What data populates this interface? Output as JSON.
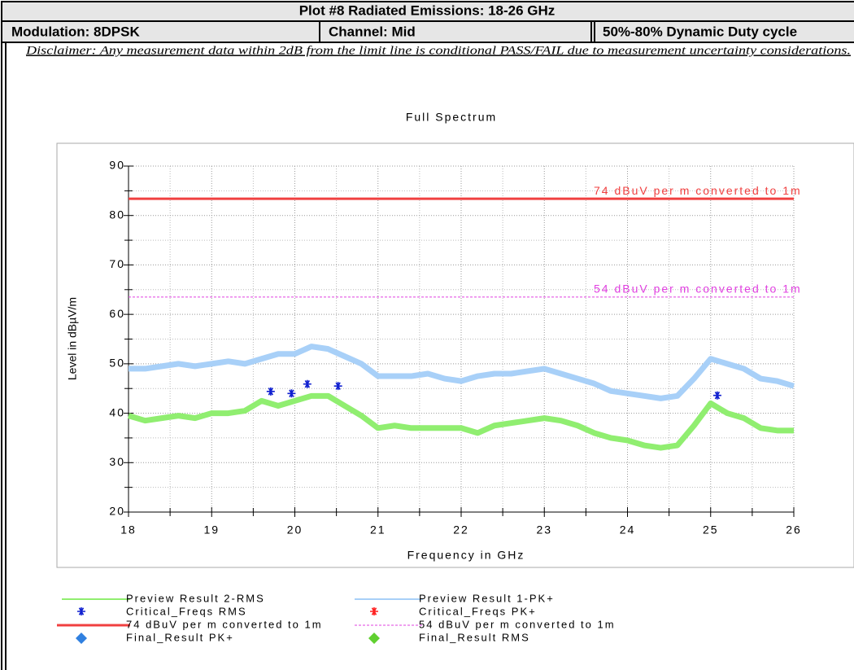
{
  "header": {
    "title": "Plot #8 Radiated Emissions: 18-26 GHz",
    "modulation": "Modulation: 8DPSK",
    "channel": "Channel: Mid",
    "duty_cycle": "50%-80% Dynamic Duty cycle",
    "disclaimer": "Disclaimer: Any measurement data within 2dB from the limit line is conditional PASS/FAIL due to measurement uncertainty considerations."
  },
  "chart_data": {
    "type": "line",
    "title": "Full Spectrum",
    "x_label": "Frequency in GHz",
    "y_label": "Level in dBµV/m",
    "xlim": [
      18,
      26
    ],
    "xticks": [
      18,
      19,
      20,
      21,
      22,
      23,
      24,
      25,
      26
    ],
    "ylim": [
      20,
      90
    ],
    "yticks": [
      20,
      30,
      40,
      50,
      60,
      70,
      80,
      90
    ],
    "grid": true,
    "x": [
      18.0,
      18.2,
      18.4,
      18.6,
      18.8,
      19.0,
      19.2,
      19.4,
      19.6,
      19.8,
      20.0,
      20.2,
      20.4,
      20.6,
      20.8,
      21.0,
      21.2,
      21.4,
      21.6,
      21.8,
      22.0,
      22.2,
      22.4,
      22.6,
      22.8,
      23.0,
      23.2,
      23.4,
      23.6,
      23.8,
      24.0,
      24.2,
      24.4,
      24.6,
      24.8,
      25.0,
      25.2,
      25.4,
      25.6,
      25.8,
      26.0
    ],
    "series": [
      {
        "name": "Preview Result 2-RMS",
        "kind": "trace",
        "color": "#90ee70",
        "values": [
          39.5,
          38.5,
          39,
          39.5,
          39,
          40,
          40,
          40.5,
          42.5,
          41.5,
          42.5,
          43.5,
          43.5,
          41.5,
          39.5,
          37,
          37.5,
          37,
          37,
          37,
          37,
          36,
          37.5,
          38,
          38.5,
          39,
          38.5,
          37.5,
          36,
          35,
          34.5,
          33.5,
          33,
          33.5,
          37.5,
          42,
          40,
          39,
          37,
          36.5,
          36.5
        ]
      },
      {
        "name": "Preview Result 1-PK+",
        "kind": "trace",
        "color": "#a8d0f8",
        "values": [
          49,
          49,
          49.5,
          50,
          49.5,
          50,
          50.5,
          50,
          51,
          52,
          52,
          53.5,
          53,
          51.5,
          50,
          47.5,
          47.5,
          47.5,
          48,
          47,
          46.5,
          47.5,
          48,
          48,
          48.5,
          49,
          48,
          47,
          46,
          44.5,
          44,
          43.5,
          43,
          43.5,
          47,
          51,
          50,
          49,
          47,
          46.5,
          45.5
        ]
      },
      {
        "name": "Critical_Freqs RMS",
        "kind": "star",
        "color": "#1020d0",
        "x": [
          19.71,
          19.96,
          20.15,
          20.52,
          25.08
        ],
        "values": [
          44.4,
          44.0,
          45.9,
          45.5,
          43.6
        ]
      },
      {
        "name": "Critical_Freqs PK+",
        "kind": "star",
        "color": "#ff2020",
        "x": [],
        "values": []
      },
      {
        "name": "74 dBuV per m converted to 1m",
        "kind": "limit",
        "color": "#f04040",
        "y": 83.4
      },
      {
        "name": "54 dBuV per m converted to 1m",
        "kind": "limit-dash",
        "color": "#e040e0",
        "y": 63.5
      },
      {
        "name": "Final_Result PK+",
        "kind": "diamond",
        "color": "#3080e0",
        "x": [],
        "values": []
      },
      {
        "name": "Final_Result RMS",
        "kind": "diamond",
        "color": "#60d030",
        "x": [],
        "values": []
      }
    ]
  }
}
